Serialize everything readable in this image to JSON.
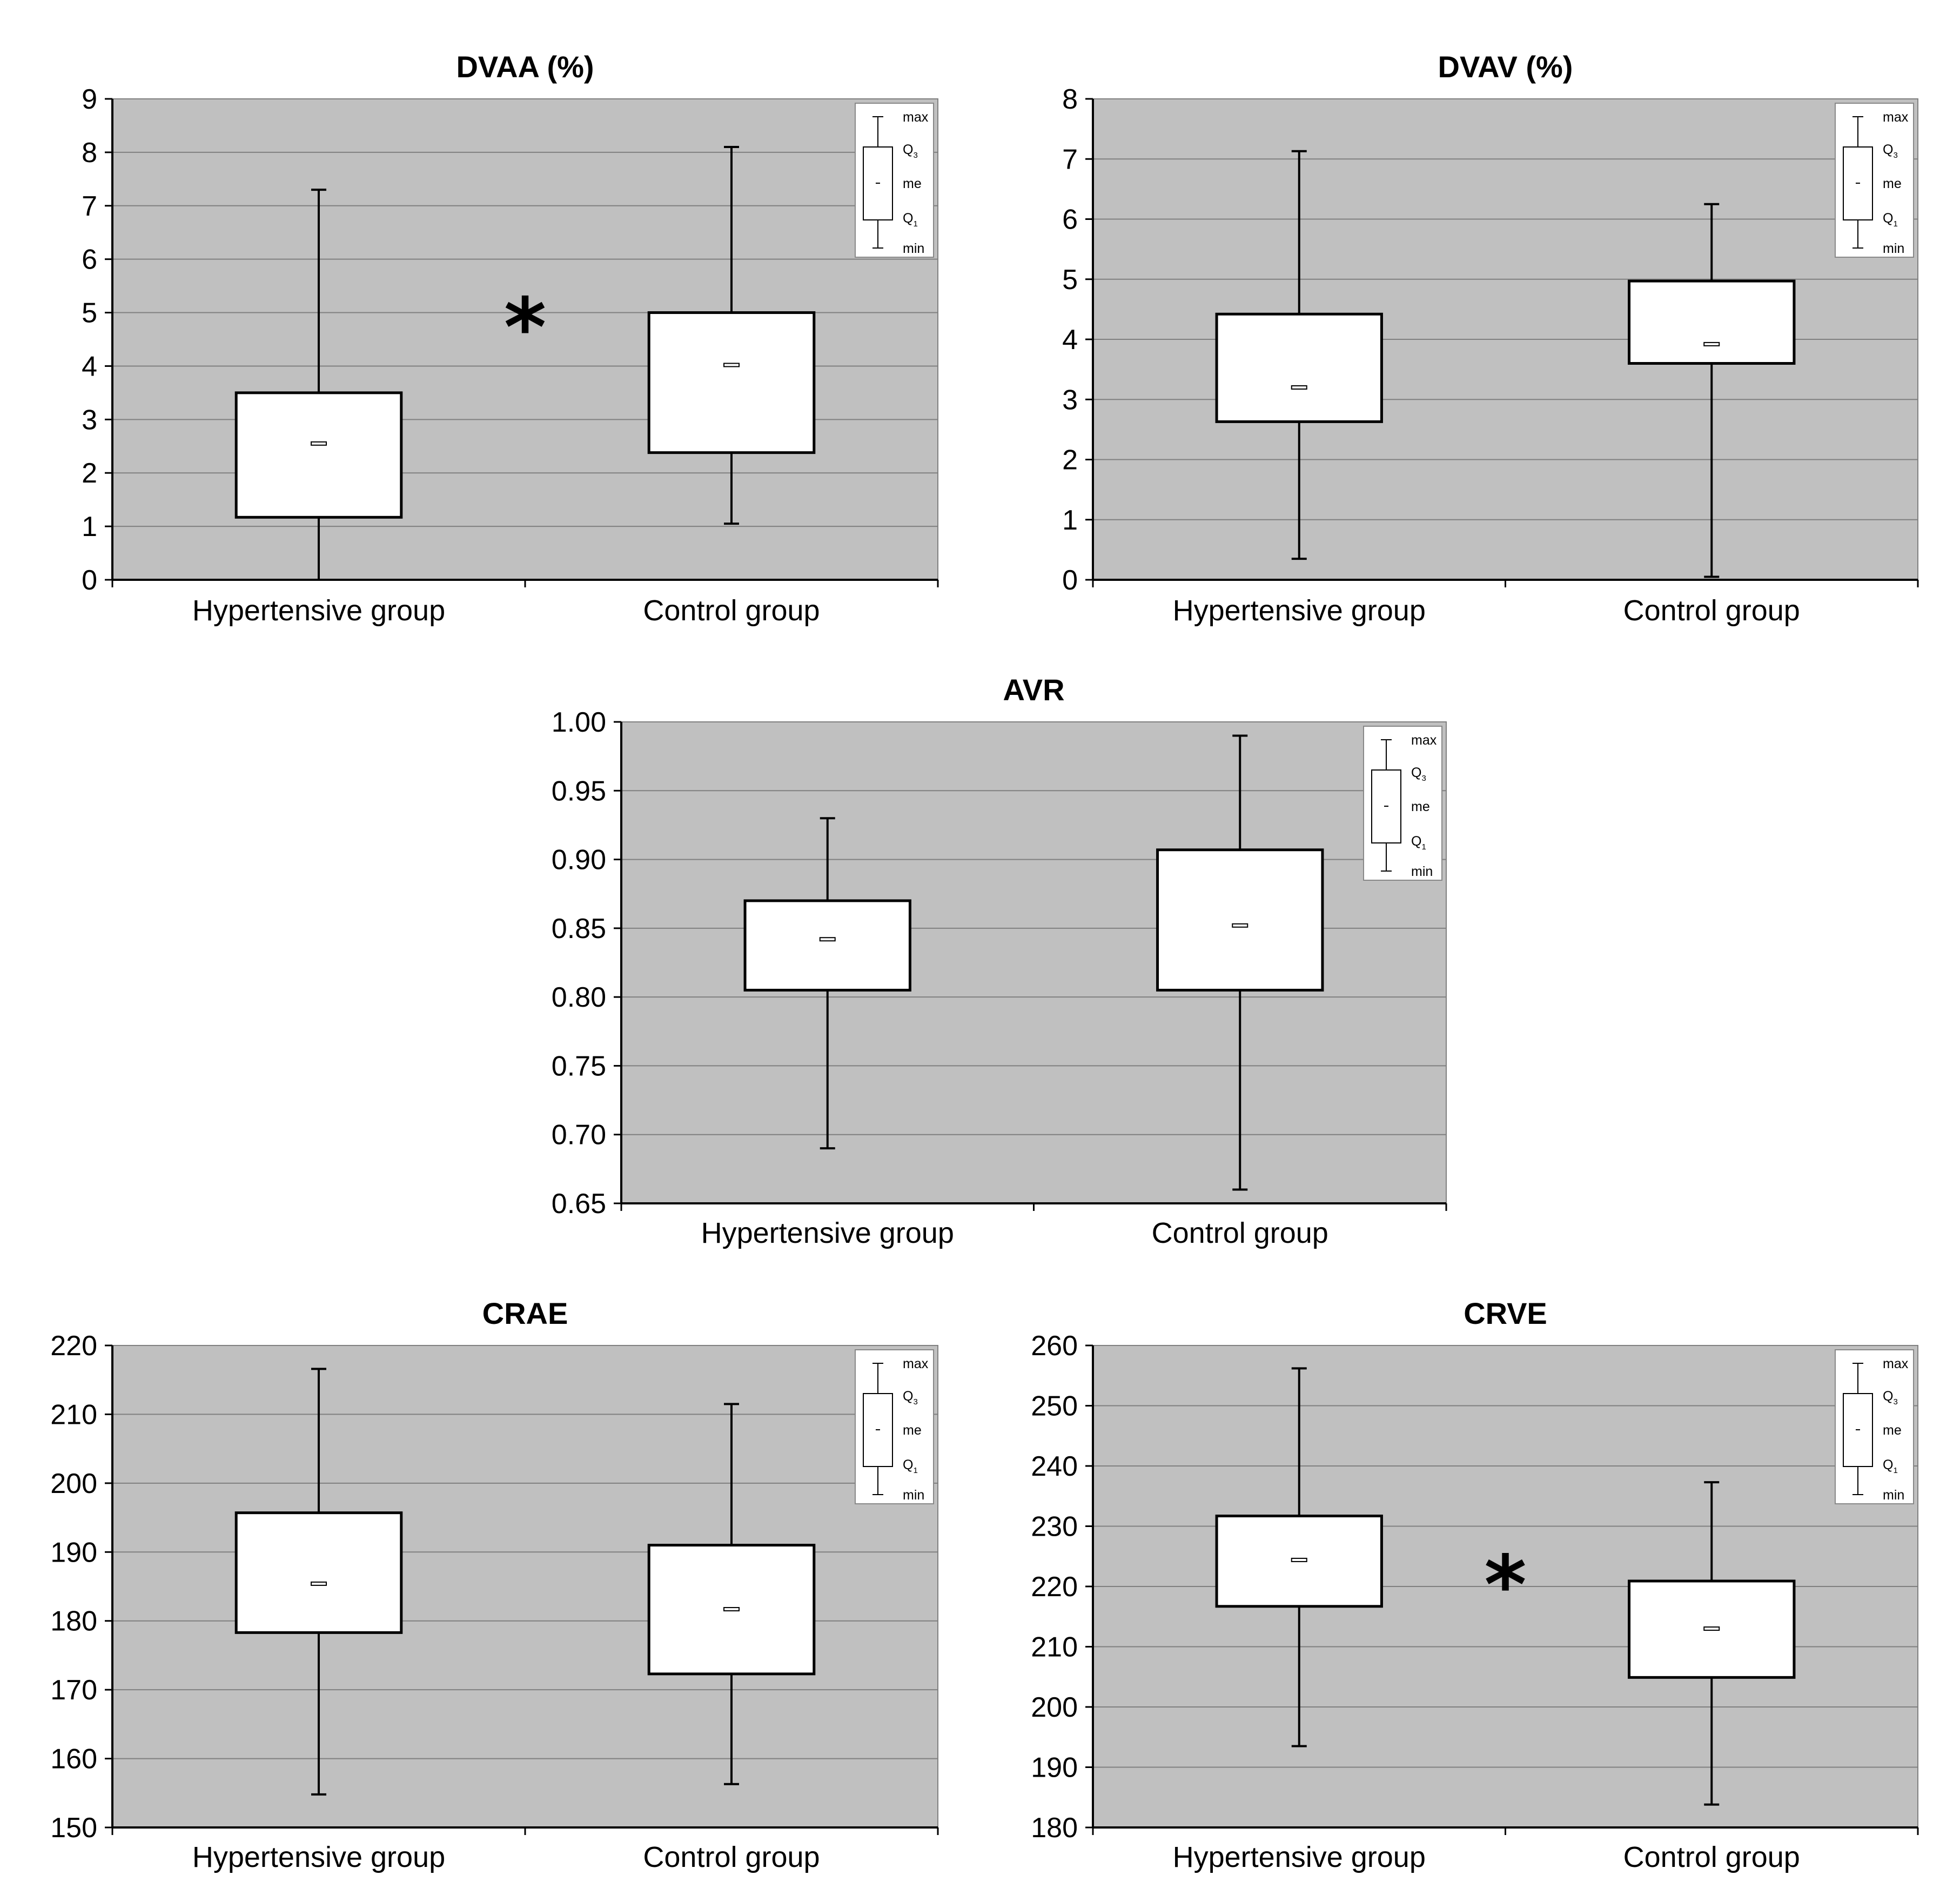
{
  "chart_data": [
    {
      "type": "boxplot",
      "title": "DVAA (%)",
      "categories": [
        "Hypertensive group",
        "Control group"
      ],
      "ylim": [
        0,
        9
      ],
      "yticks": [
        "0",
        "1",
        "2",
        "3",
        "4",
        "5",
        "6",
        "7",
        "8",
        "9"
      ],
      "boxes": [
        {
          "min": 0.0,
          "q1": 1.17,
          "median": 2.55,
          "q3": 3.5,
          "max": 7.3
        },
        {
          "min": 1.05,
          "q1": 2.38,
          "median": 4.02,
          "q3": 5.0,
          "max": 8.1
        }
      ],
      "significance": "*",
      "grid": true,
      "legend": {
        "position": "top-right",
        "labels": [
          "max",
          "Q",
          "me",
          "Q",
          "min"
        ],
        "subscripts": [
          "",
          "3",
          "",
          "1",
          ""
        ]
      }
    },
    {
      "type": "boxplot",
      "title": "DVAV (%)",
      "categories": [
        "Hypertensive group",
        "Control group"
      ],
      "ylim": [
        0,
        8
      ],
      "yticks": [
        "0",
        "1",
        "2",
        "3",
        "4",
        "5",
        "6",
        "7",
        "8"
      ],
      "boxes": [
        {
          "min": 0.35,
          "q1": 2.63,
          "median": 3.2,
          "q3": 4.42,
          "max": 7.13
        },
        {
          "min": 0.05,
          "q1": 3.6,
          "median": 3.92,
          "q3": 4.97,
          "max": 6.25
        }
      ],
      "significance": "",
      "grid": true,
      "legend": {
        "position": "top-right",
        "labels": [
          "max",
          "Q",
          "me",
          "Q",
          "min"
        ],
        "subscripts": [
          "",
          "3",
          "",
          "1",
          ""
        ]
      }
    },
    {
      "type": "boxplot",
      "title": "AVR",
      "categories": [
        "Hypertensive group",
        "Control group"
      ],
      "ylim": [
        0.65,
        1.0
      ],
      "yticks": [
        "0.65",
        "0.70",
        "0.75",
        "0.80",
        "0.85",
        "0.90",
        "0.95",
        "1.00"
      ],
      "boxes": [
        {
          "min": 0.69,
          "q1": 0.805,
          "median": 0.842,
          "q3": 0.87,
          "max": 0.93
        },
        {
          "min": 0.66,
          "q1": 0.805,
          "median": 0.852,
          "q3": 0.907,
          "max": 0.99
        }
      ],
      "significance": "",
      "grid": true,
      "legend": {
        "position": "top-right",
        "labels": [
          "max",
          "Q",
          "me",
          "Q",
          "min"
        ],
        "subscripts": [
          "",
          "3",
          "",
          "1",
          ""
        ]
      }
    },
    {
      "type": "boxplot",
      "title": "CRAE",
      "categories": [
        "Hypertensive group",
        "Control group"
      ],
      "ylim": [
        150,
        220
      ],
      "yticks": [
        "150",
        "160",
        "170",
        "180",
        "190",
        "200",
        "210",
        "220"
      ],
      "boxes": [
        {
          "min": 154.8,
          "q1": 178.3,
          "median": 185.4,
          "q3": 195.7,
          "max": 216.6
        },
        {
          "min": 156.3,
          "q1": 172.3,
          "median": 181.7,
          "q3": 191.0,
          "max": 211.5
        }
      ],
      "significance": "",
      "grid": true,
      "legend": {
        "position": "top-right",
        "labels": [
          "max",
          "Q",
          "me",
          "Q",
          "min"
        ],
        "subscripts": [
          "",
          "3",
          "",
          "1",
          ""
        ]
      }
    },
    {
      "type": "boxplot",
      "title": "CRVE",
      "categories": [
        "Hypertensive group",
        "Control group"
      ],
      "ylim": [
        180,
        260
      ],
      "yticks": [
        "180",
        "190",
        "200",
        "210",
        "220",
        "230",
        "240",
        "250",
        "260"
      ],
      "boxes": [
        {
          "min": 193.5,
          "q1": 216.7,
          "median": 224.4,
          "q3": 231.7,
          "max": 256.2
        },
        {
          "min": 183.8,
          "q1": 204.9,
          "median": 213.0,
          "q3": 220.9,
          "max": 237.3
        }
      ],
      "significance": "*",
      "grid": true,
      "legend": {
        "position": "top-right",
        "labels": [
          "max",
          "Q",
          "me",
          "Q",
          "min"
        ],
        "subscripts": [
          "",
          "3",
          "",
          "1",
          ""
        ]
      }
    }
  ],
  "colors": {
    "plot_background": "#c0c0c0",
    "gridline": "#808080",
    "box_fill": "#ffffff",
    "stroke": "#000000",
    "page_background": "#ffffff"
  }
}
